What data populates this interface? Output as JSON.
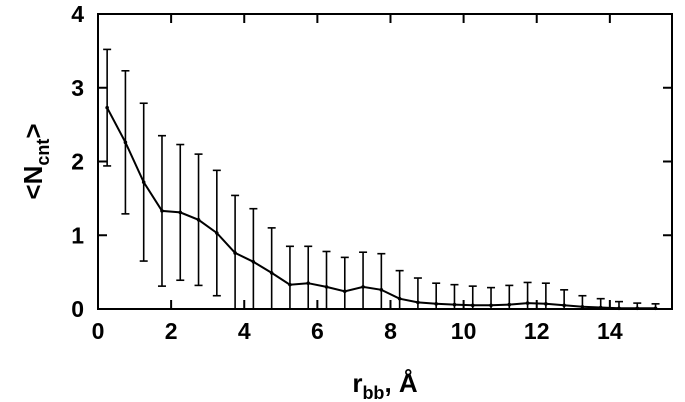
{
  "chart_data": {
    "type": "line",
    "xlabel": {
      "main": "r",
      "sub": "bb",
      "rest": ", Å"
    },
    "ylabel": {
      "lt": "<",
      "main": "N",
      "sub": "cnt",
      "gt": ">"
    },
    "xlim": [
      0,
      15.7
    ],
    "ylim": [
      0,
      4
    ],
    "x_ticks": [
      0,
      2,
      4,
      6,
      8,
      10,
      12,
      14
    ],
    "y_ticks": [
      0,
      1,
      2,
      3,
      4
    ],
    "grid": false,
    "series": [
      {
        "x": [
          0.25,
          0.75,
          1.25,
          1.75,
          2.25,
          2.75,
          3.25,
          3.75,
          4.25,
          4.75,
          5.25,
          5.75,
          6.25,
          6.75,
          7.25,
          7.75,
          8.25,
          8.75,
          9.25,
          9.75,
          10.25,
          10.75,
          11.25,
          11.75,
          12.25,
          12.75,
          13.25,
          13.75,
          14.25,
          14.75,
          15.25
        ],
        "y": [
          2.73,
          2.26,
          1.72,
          1.33,
          1.31,
          1.21,
          1.03,
          0.76,
          0.64,
          0.49,
          0.33,
          0.35,
          0.3,
          0.24,
          0.3,
          0.26,
          0.14,
          0.09,
          0.07,
          0.06,
          0.05,
          0.05,
          0.06,
          0.08,
          0.07,
          0.05,
          0.03,
          0.02,
          0.01,
          0.01,
          0.01
        ],
        "error": [
          0.79,
          0.97,
          1.07,
          1.02,
          0.92,
          0.89,
          0.85,
          0.78,
          0.72,
          0.61,
          0.52,
          0.5,
          0.48,
          0.46,
          0.47,
          0.49,
          0.38,
          0.33,
          0.28,
          0.27,
          0.26,
          0.24,
          0.26,
          0.28,
          0.28,
          0.21,
          0.15,
          0.12,
          0.09,
          0.07,
          0.06
        ]
      }
    ]
  }
}
